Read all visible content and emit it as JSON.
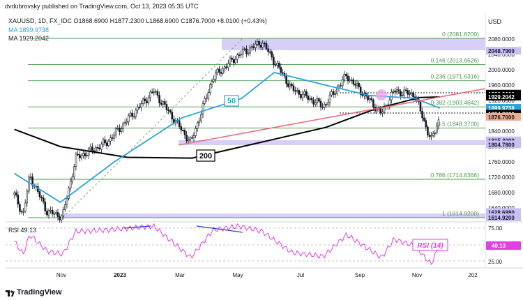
{
  "header": {
    "published": "dvdubrovsky published on TradingView.com, Oct 13, 2023 05:35 UTC",
    "symbol_line": "XAUUSD, 1D, FX_IDC  O1868.6900  H1877.2300  L1868.6900  C1876.7000  +8.0100 (+0.43%)",
    "ma1": "MA  1899.9738",
    "ma2": "MA  1929.2042",
    "currency": "USD"
  },
  "colors": {
    "up": "#000000",
    "down": "#000000",
    "ma50": "#29a3e0",
    "ma200": "#000000",
    "trend": "#f06a7e",
    "fib": "#4c9a4c",
    "zone": "#c9bff5",
    "rsi": "#e040e0",
    "rsi_div": "#2d3fd6"
  },
  "fib_levels": [
    {
      "label": "0 (2081.8200)",
      "price": 2081.82
    },
    {
      "label": "0.146 (2013.6526)",
      "price": 2013.6526
    },
    {
      "label": "0.236 (1971.6316)",
      "price": 1971.6316
    },
    {
      "label": "0.382 (1903.4642)",
      "price": 1903.4642
    },
    {
      "label": "0.5 (1848.3700)",
      "price": 1848.37
    },
    {
      "label": "0.786 (1714.8366)",
      "price": 1714.8366
    },
    {
      "label": "1 (1614.9200)",
      "price": 1614.92
    }
  ],
  "price_axis": {
    "ticks": [
      "2080.0000",
      "2040.0000",
      "2000.0000",
      "1960.0000",
      "1920.0000",
      "1880.0000",
      "1840.0000",
      "1800.0000",
      "1760.0000",
      "1720.0000",
      "1680.0000",
      "1640.0000"
    ],
    "tags": [
      {
        "label": "2048.7900",
        "bg": "#c9bff5",
        "fg": "#131722",
        "price": 2048.79
      },
      {
        "label": "1936.9000",
        "bg": "#000000",
        "fg": "#ffffff",
        "price": 1936.9
      },
      {
        "label": "1929.2042",
        "bg": "#000000",
        "fg": "#ffffff",
        "price": 1929.2042
      },
      {
        "label": "1899.9738",
        "bg": "#29a3e0",
        "fg": "#ffffff",
        "price": 1899.9738
      },
      {
        "label": "1884.8900",
        "bg": "#000000",
        "fg": "#ffffff",
        "price": 1884.89
      },
      {
        "label": "1876.7000",
        "bg": "#f5a98f",
        "fg": "#131722",
        "price": 1876.7
      },
      {
        "label": "1815.3000",
        "bg": "#c9bff5",
        "fg": "#131722",
        "price": 1815.3
      },
      {
        "label": "1804.7800",
        "bg": "#c9bff5",
        "fg": "#131722",
        "price": 1804.78
      },
      {
        "label": "1628.6880",
        "bg": "#c9bff5",
        "fg": "#131722",
        "price": 1628.688
      },
      {
        "label": "1614.9200",
        "bg": "#c9bff5",
        "fg": "#131722",
        "price": 1614.92
      }
    ]
  },
  "ma_labels": {
    "ma50": "50",
    "ma200": "200"
  },
  "rsi": {
    "label": "RSI  49.13",
    "tag_label": "RSI (14)",
    "value_tag": "49.13",
    "ticks": [
      "75.00",
      "25.00"
    ]
  },
  "time_axis": [
    "Nov",
    "2023",
    "Mar",
    "May",
    "Jul",
    "Sep",
    "Nov",
    "202"
  ],
  "footer": {
    "brand": "TradingView"
  },
  "chart_data": {
    "type": "candlestick",
    "title": "XAUUSD, 1D, FX_IDC",
    "ylim": [
      1600,
      2100
    ],
    "x_labels": [
      "Nov",
      "2023",
      "Mar",
      "May",
      "Jul",
      "Sep",
      "Nov"
    ],
    "price_path": [
      {
        "x": "2022-09-20",
        "y": 1675
      },
      {
        "x": "2022-09-28",
        "y": 1622
      },
      {
        "x": "2022-10-04",
        "y": 1725
      },
      {
        "x": "2022-10-20",
        "y": 1630
      },
      {
        "x": "2022-11-03",
        "y": 1618
      },
      {
        "x": "2022-11-15",
        "y": 1770
      },
      {
        "x": "2022-12-13",
        "y": 1810
      },
      {
        "x": "2023-01-25",
        "y": 1945
      },
      {
        "x": "2023-02-28",
        "y": 1810
      },
      {
        "x": "2023-03-20",
        "y": 1980
      },
      {
        "x": "2023-04-13",
        "y": 2040
      },
      {
        "x": "2023-05-04",
        "y": 2072
      },
      {
        "x": "2023-05-31",
        "y": 1950
      },
      {
        "x": "2023-06-29",
        "y": 1905
      },
      {
        "x": "2023-07-20",
        "y": 1985
      },
      {
        "x": "2023-08-21",
        "y": 1885
      },
      {
        "x": "2023-09-01",
        "y": 1945
      },
      {
        "x": "2023-09-20",
        "y": 1935
      },
      {
        "x": "2023-10-05",
        "y": 1815
      },
      {
        "x": "2023-10-13",
        "y": 1876.7
      }
    ],
    "ma50_path": [
      {
        "x": "2022-09-20",
        "y": 1730
      },
      {
        "x": "2022-11-01",
        "y": 1655
      },
      {
        "x": "2022-12-20",
        "y": 1760
      },
      {
        "x": "2023-02-20",
        "y": 1875
      },
      {
        "x": "2023-04-15",
        "y": 1925
      },
      {
        "x": "2023-05-15",
        "y": 1993
      },
      {
        "x": "2023-07-01",
        "y": 1960
      },
      {
        "x": "2023-08-10",
        "y": 1933
      },
      {
        "x": "2023-09-20",
        "y": 1926
      },
      {
        "x": "2023-10-13",
        "y": 1899.97
      }
    ],
    "ma200_path": [
      {
        "x": "2022-09-20",
        "y": 1845
      },
      {
        "x": "2022-11-01",
        "y": 1800
      },
      {
        "x": "2023-01-01",
        "y": 1772
      },
      {
        "x": "2023-03-01",
        "y": 1770
      },
      {
        "x": "2023-05-01",
        "y": 1810
      },
      {
        "x": "2023-07-01",
        "y": 1850
      },
      {
        "x": "2023-08-15",
        "y": 1898
      },
      {
        "x": "2023-09-25",
        "y": 1928
      },
      {
        "x": "2023-10-13",
        "y": 1929.2
      }
    ],
    "rsi_path": [
      {
        "x": "2022-09-20",
        "y": 55
      },
      {
        "x": "2022-09-28",
        "y": 35
      },
      {
        "x": "2022-10-04",
        "y": 65
      },
      {
        "x": "2022-10-20",
        "y": 40
      },
      {
        "x": "2022-11-03",
        "y": 35
      },
      {
        "x": "2022-11-15",
        "y": 70
      },
      {
        "x": "2022-12-13",
        "y": 72
      },
      {
        "x": "2023-01-25",
        "y": 78
      },
      {
        "x": "2023-02-28",
        "y": 30
      },
      {
        "x": "2023-03-20",
        "y": 72
      },
      {
        "x": "2023-04-13",
        "y": 78
      },
      {
        "x": "2023-05-04",
        "y": 70
      },
      {
        "x": "2023-05-31",
        "y": 38
      },
      {
        "x": "2023-06-29",
        "y": 32
      },
      {
        "x": "2023-07-20",
        "y": 65
      },
      {
        "x": "2023-08-21",
        "y": 30
      },
      {
        "x": "2023-09-01",
        "y": 58
      },
      {
        "x": "2023-09-20",
        "y": 48
      },
      {
        "x": "2023-10-05",
        "y": 20
      },
      {
        "x": "2023-10-13",
        "y": 49.13
      }
    ]
  }
}
